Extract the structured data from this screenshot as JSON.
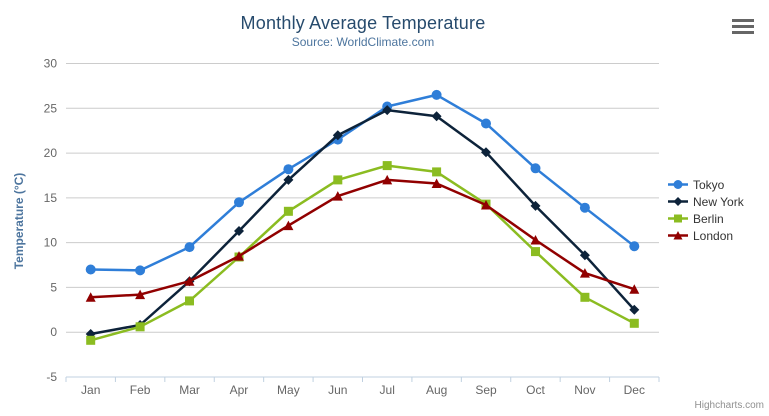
{
  "chart": {
    "title": "Monthly Average Temperature",
    "subtitle": "Source: WorldClimate.com",
    "yaxis_title": "Temperature (°C)",
    "credits": "Highcharts.com",
    "context_menu_icon": "hamburger-icon",
    "colors": {
      "title": "#274b6d",
      "subtitle": "#4d759e",
      "axis_labels": "#666666",
      "gridline": "#cccccc",
      "axis_line": "#c0d0e0",
      "legend_text": "#333333",
      "credits": "#909090"
    }
  },
  "chart_data": {
    "type": "line",
    "title": "Monthly Average Temperature",
    "subtitle": "Source: WorldClimate.com",
    "xlabel": "",
    "ylabel": "Temperature (°C)",
    "categories": [
      "Jan",
      "Feb",
      "Mar",
      "Apr",
      "May",
      "Jun",
      "Jul",
      "Aug",
      "Sep",
      "Oct",
      "Nov",
      "Dec"
    ],
    "ylim": [
      -5,
      30
    ],
    "ytick_step": 5,
    "grid": true,
    "legend_position": "right",
    "series": [
      {
        "name": "Tokyo",
        "color": "#2f7ed8",
        "marker": "circle",
        "values": [
          7.0,
          6.9,
          9.5,
          14.5,
          18.2,
          21.5,
          25.2,
          26.5,
          23.3,
          18.3,
          13.9,
          9.6
        ]
      },
      {
        "name": "New York",
        "color": "#0d233a",
        "marker": "diamond",
        "values": [
          -0.2,
          0.8,
          5.7,
          11.3,
          17.0,
          22.0,
          24.8,
          24.1,
          20.1,
          14.1,
          8.6,
          2.5
        ]
      },
      {
        "name": "Berlin",
        "color": "#8bbc21",
        "marker": "square",
        "values": [
          -0.9,
          0.6,
          3.5,
          8.4,
          13.5,
          17.0,
          18.6,
          17.9,
          14.3,
          9.0,
          3.9,
          1.0
        ]
      },
      {
        "name": "London",
        "color": "#910000",
        "marker": "triangle",
        "values": [
          3.9,
          4.2,
          5.7,
          8.5,
          11.9,
          15.2,
          17.0,
          16.6,
          14.2,
          10.3,
          6.6,
          4.8
        ]
      }
    ]
  }
}
